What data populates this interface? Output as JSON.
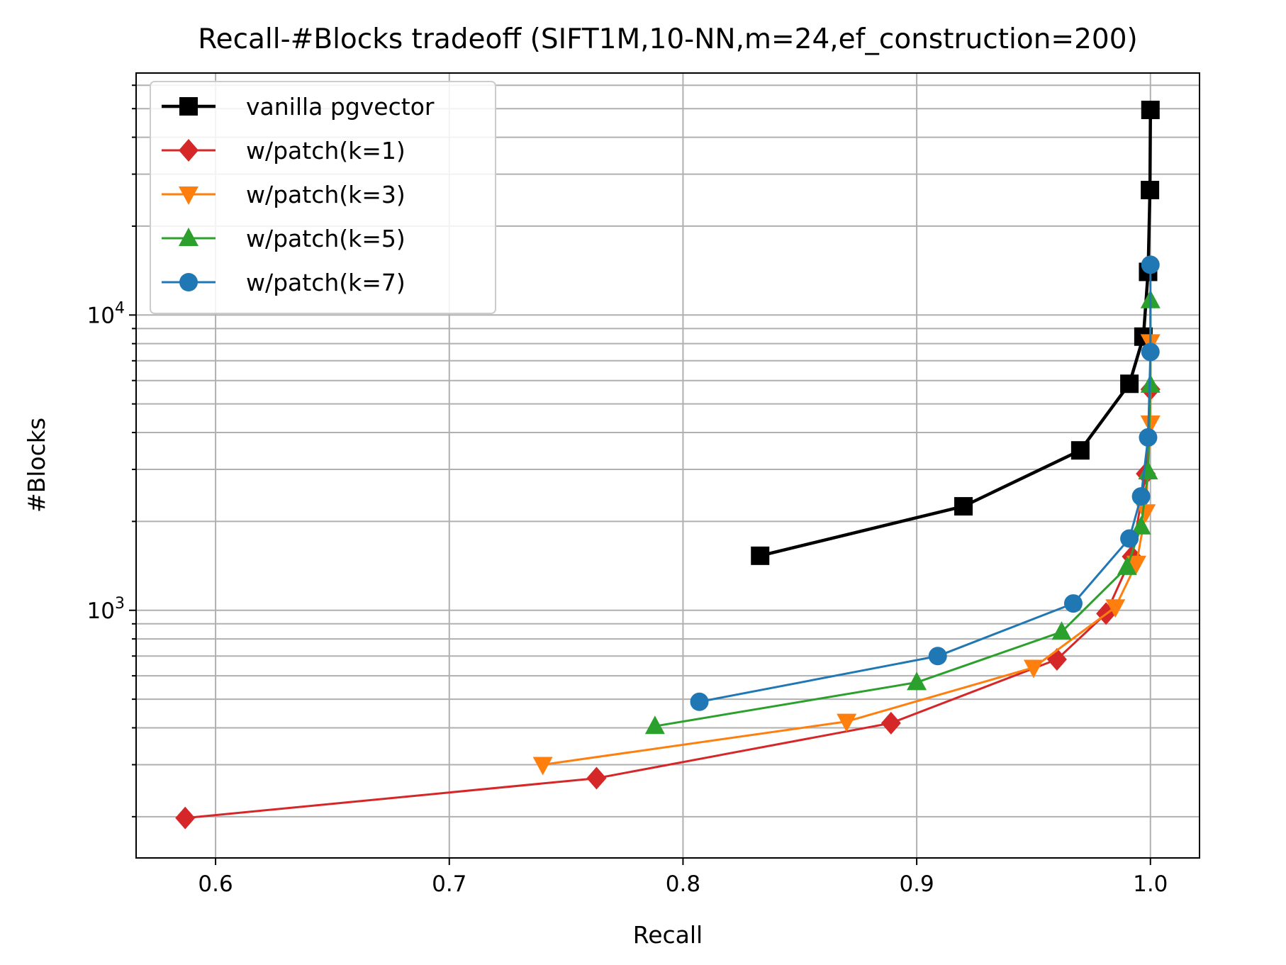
{
  "chart_data": {
    "type": "line",
    "title": "Recall-#Blocks tradeoff (SIFT1M,10-NN,m=24,ef_construction=200)",
    "xlabel": "Recall",
    "ylabel": "#Blocks",
    "xlim": [
      0.566,
      1.021
    ],
    "ylim": [
      145,
      66000
    ],
    "yscale": "log",
    "grid": true,
    "grid_minor_y": true,
    "legend_position": "top-left",
    "x_ticks": [
      0.6,
      0.7,
      0.8,
      0.9,
      1.0
    ],
    "x_tick_labels": [
      "0.6",
      "0.7",
      "0.8",
      "0.9",
      "1.0"
    ],
    "y_major_ticks": [
      {
        "value": 1000,
        "base": "10",
        "exp": "3"
      },
      {
        "value": 10000,
        "base": "10",
        "exp": "4"
      }
    ],
    "series": [
      {
        "name": "vanilla pgvector",
        "color": "#000000",
        "marker": "square",
        "line_width": 4.5,
        "points": [
          [
            0.833,
            1530
          ],
          [
            0.92,
            2250
          ],
          [
            0.97,
            3480
          ],
          [
            0.991,
            5850
          ],
          [
            0.997,
            8450
          ],
          [
            0.999,
            14000
          ],
          [
            0.9998,
            26500
          ],
          [
            1.0,
            49500
          ]
        ]
      },
      {
        "name": "w/patch(k=1)",
        "color": "#d62728",
        "marker": "diamond",
        "line_width": 3,
        "points": [
          [
            0.587,
            198
          ],
          [
            0.763,
            270
          ],
          [
            0.889,
            415
          ],
          [
            0.96,
            682
          ],
          [
            0.981,
            975
          ],
          [
            0.992,
            1520
          ],
          [
            0.998,
            2900
          ],
          [
            1.0,
            5600
          ]
        ]
      },
      {
        "name": "w/patch(k=3)",
        "color": "#ff7f0e",
        "marker": "triangle-down",
        "line_width": 3,
        "points": [
          [
            0.74,
            300
          ],
          [
            0.87,
            420
          ],
          [
            0.95,
            640
          ],
          [
            0.985,
            1025
          ],
          [
            0.994,
            1440
          ],
          [
            0.998,
            2150
          ],
          [
            1.0,
            4300
          ],
          [
            1.0,
            8100
          ]
        ]
      },
      {
        "name": "w/patch(k=5)",
        "color": "#2ca02c",
        "marker": "triangle-up",
        "line_width": 3,
        "points": [
          [
            0.788,
            405
          ],
          [
            0.9,
            570
          ],
          [
            0.962,
            845
          ],
          [
            0.99,
            1400
          ],
          [
            0.996,
            1920
          ],
          [
            0.999,
            2950
          ],
          [
            1.0,
            5800
          ],
          [
            1.0,
            11200
          ]
        ]
      },
      {
        "name": "w/patch(k=7)",
        "color": "#1f77b4",
        "marker": "circle",
        "line_width": 3,
        "points": [
          [
            0.807,
            490
          ],
          [
            0.909,
            700
          ],
          [
            0.967,
            1055
          ],
          [
            0.991,
            1750
          ],
          [
            0.996,
            2430
          ],
          [
            0.999,
            3850
          ],
          [
            1.0,
            7500
          ],
          [
            1.0,
            14800
          ]
        ]
      }
    ]
  }
}
